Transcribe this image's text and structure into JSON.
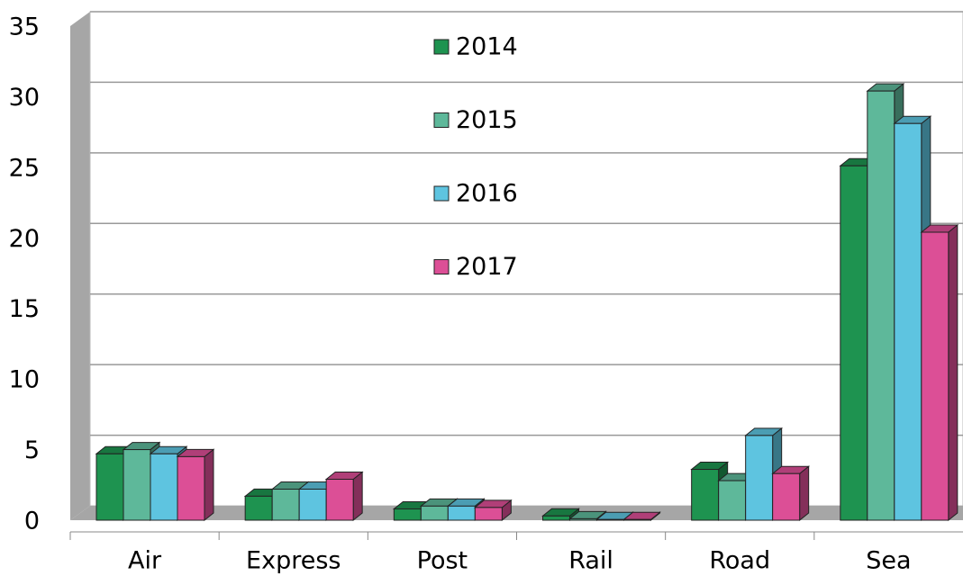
{
  "chart_data": {
    "type": "bar3d",
    "categories": [
      "Air",
      "Express",
      "Post",
      "Rail",
      "Road",
      "Sea"
    ],
    "series": [
      {
        "name": "2014",
        "color": "#1e9350",
        "values": [
          4.7,
          1.7,
          0.8,
          0.3,
          3.6,
          25.1
        ]
      },
      {
        "name": "2015",
        "color": "#5eb89a",
        "values": [
          5.0,
          2.2,
          1.0,
          0.1,
          2.8,
          30.4
        ]
      },
      {
        "name": "2016",
        "color": "#5ec4e0",
        "values": [
          4.7,
          2.2,
          1.0,
          0.05,
          6.0,
          28.1
        ]
      },
      {
        "name": "2017",
        "color": "#dc4f96",
        "values": [
          4.5,
          2.9,
          0.9,
          0.05,
          3.3,
          20.4
        ]
      }
    ],
    "ylim": [
      0,
      35
    ],
    "yticks": [
      0,
      5,
      10,
      15,
      20,
      25,
      30,
      35
    ],
    "grid": true,
    "legend": "top-center"
  }
}
